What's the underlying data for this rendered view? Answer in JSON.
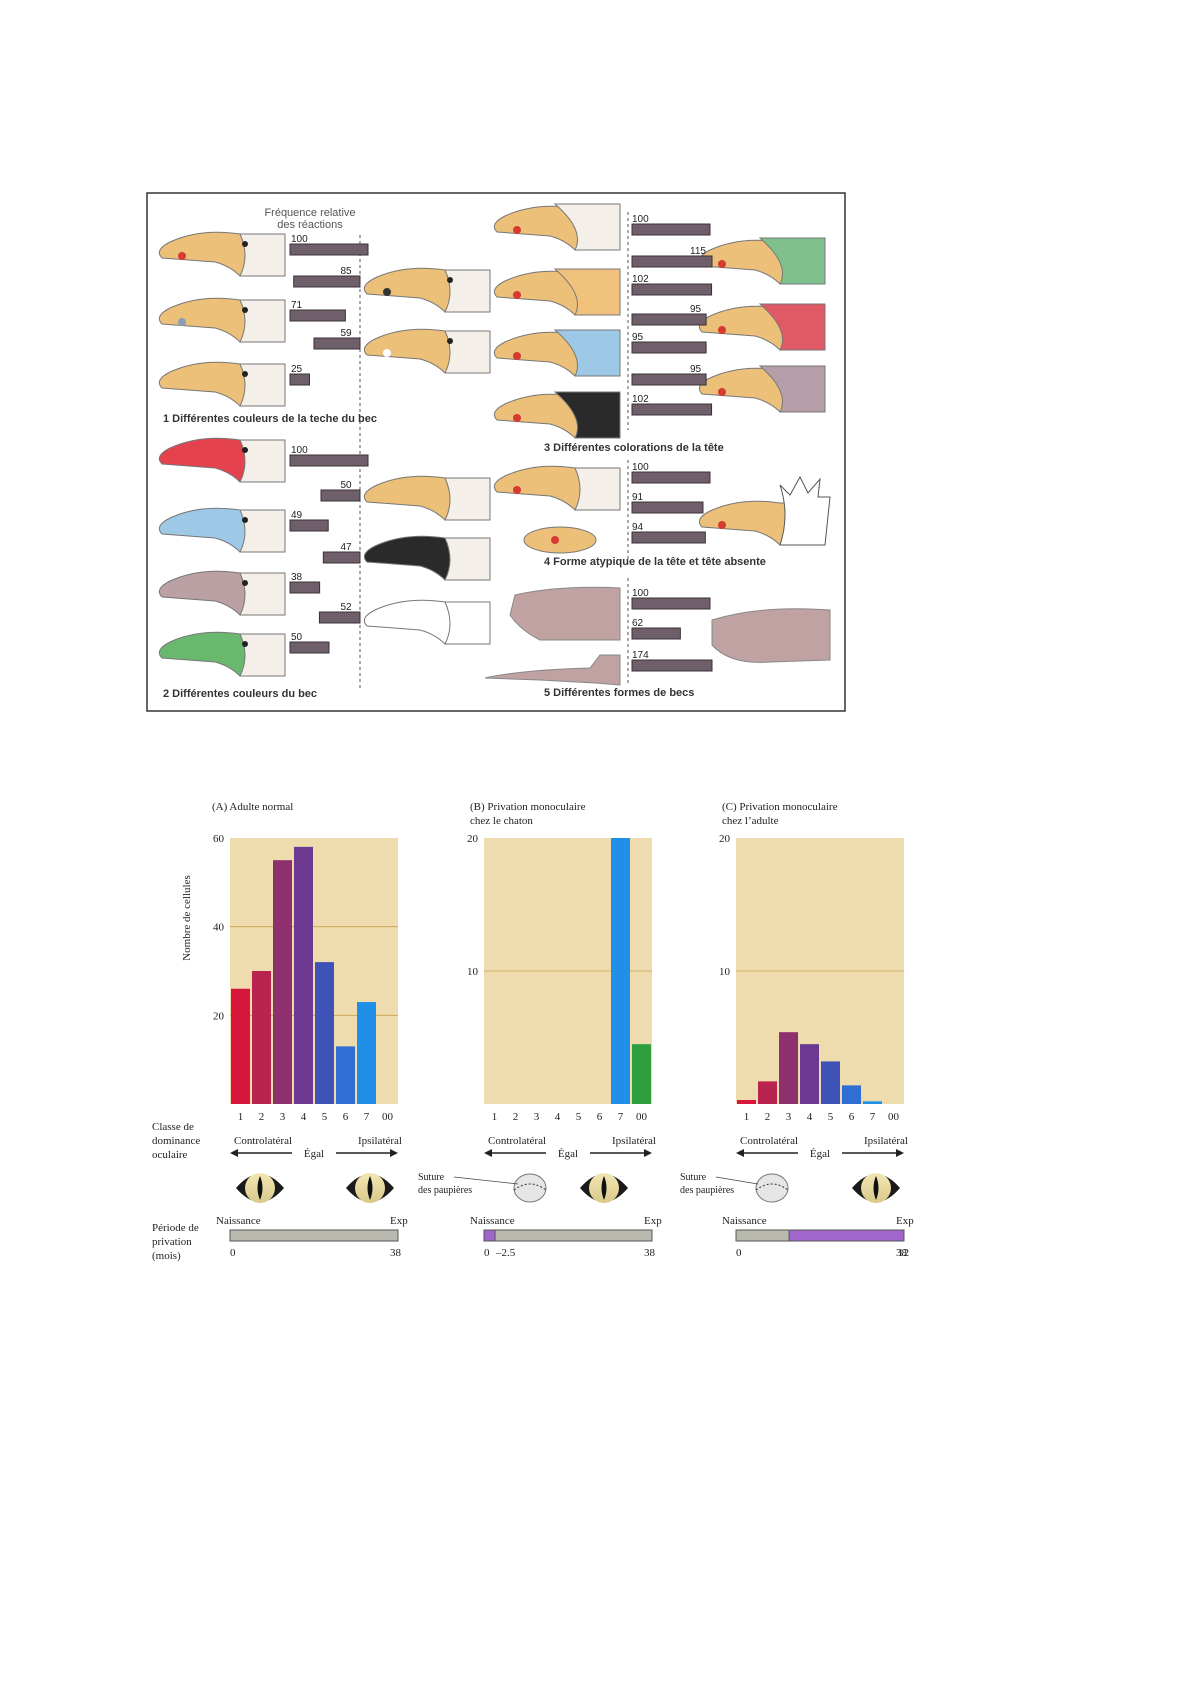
{
  "figure1": {
    "header": "Fréquence relative\ndes réactions",
    "panels": [
      {
        "caption": "1 Différentes couleurs de la teche du bec",
        "values": [
          100,
          85,
          71,
          59,
          25
        ]
      },
      {
        "caption": "2 Différentes couleurs du bec",
        "values": [
          100,
          50,
          49,
          47,
          38,
          52,
          50
        ]
      },
      {
        "caption": "3 Différentes colorations de la tête",
        "values": [
          100,
          115,
          102,
          95,
          95,
          95,
          102
        ]
      },
      {
        "caption": "4 Forme atypique de la tête et tête absente",
        "values": [
          100,
          91,
          94
        ]
      },
      {
        "caption": "5 Différentes formes de becs",
        "values": [
          100,
          62,
          174
        ]
      }
    ]
  },
  "figure2": {
    "yaxis_title": "Nombre de cellules",
    "row_labels": {
      "dominance": [
        "Classe de",
        "dominance",
        "oculaire"
      ],
      "period": [
        "Période de",
        "privation",
        "(mois)"
      ]
    },
    "dominance_words": {
      "contra": "Controlatéral",
      "equal": "Égal",
      "ipsi": "Ipsilatéral"
    },
    "suture_label": [
      "Suture",
      "des paupières"
    ],
    "timeline_words": {
      "start": "Naissance",
      "end": "Exp"
    },
    "colors": [
      "#d6163a",
      "#b8234f",
      "#8e2f6e",
      "#6c3890",
      "#3e52b8",
      "#2f6fd4",
      "#1f8fe8",
      "#2e9e3e"
    ]
  },
  "chart_data": [
    {
      "type": "bar",
      "title": "(A)  Adulte normal",
      "categories": [
        "1",
        "2",
        "3",
        "4",
        "5",
        "6",
        "7",
        "00"
      ],
      "values": [
        26,
        30,
        55,
        58,
        32,
        13,
        23,
        0
      ],
      "ylim": [
        0,
        60
      ],
      "yticks": [
        20,
        40,
        60
      ],
      "ylabel": "Nombre de cellules",
      "grid": true,
      "timeline": {
        "start": "0",
        "end": "38",
        "deprivation": null
      }
    },
    {
      "type": "bar",
      "title": "(B)  Privation monoculaire\nchez le chaton",
      "categories": [
        "1",
        "2",
        "3",
        "4",
        "5",
        "6",
        "7",
        "00"
      ],
      "values": [
        0,
        0,
        0,
        0,
        0,
        0,
        20,
        4.5
      ],
      "ylim": [
        0,
        20
      ],
      "yticks": [
        10,
        20
      ],
      "grid": true,
      "timeline": {
        "start": "0",
        "mid": "2.5",
        "end": "38",
        "deprivation": [
          0,
          2.5
        ]
      }
    },
    {
      "type": "bar",
      "title": "(C)  Privation monoculaire\nchez l’adulte",
      "categories": [
        "1",
        "2",
        "3",
        "4",
        "5",
        "6",
        "7",
        "00"
      ],
      "values": [
        0.3,
        1.7,
        5.4,
        4.5,
        3.2,
        1.4,
        0.2,
        0
      ],
      "ylim": [
        0,
        20
      ],
      "yticks": [
        10,
        20
      ],
      "grid": true,
      "timeline": {
        "start": "0",
        "mid": "12",
        "end": "38",
        "deprivation": [
          12,
          38
        ]
      }
    }
  ]
}
